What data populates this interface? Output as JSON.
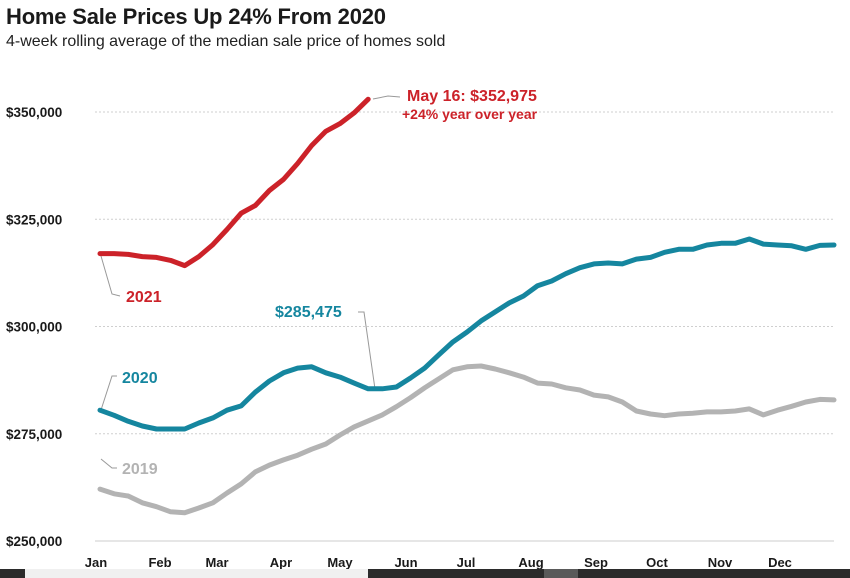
{
  "title": "Home Sale Prices Up 24% From 2020",
  "subtitle": "4-week rolling average of the median sale price of homes sold",
  "chart_data": {
    "type": "line",
    "title": "Home Sale Prices Up 24% From 2020",
    "subtitle": "4-week rolling average of the median sale price of homes sold",
    "xlabel": "",
    "ylabel": "",
    "x_tick_labels": [
      "Jan",
      "Feb",
      "Mar",
      "Apr",
      "May",
      "Jun",
      "Jul",
      "Aug",
      "Sep",
      "Oct",
      "Nov",
      "Dec"
    ],
    "y_tick_labels": [
      "$250,000",
      "$275,000",
      "$300,000",
      "$325,000",
      "$350,000"
    ],
    "y_ticks": [
      250000,
      275000,
      300000,
      325000,
      350000
    ],
    "ylim": [
      250000,
      352975
    ],
    "xlim_weeks": [
      0,
      52
    ],
    "grid": "horizontal dotted",
    "legend": "inline labels",
    "series": [
      {
        "name": "2021",
        "color": "#cc2229",
        "weeks": [
          0,
          1,
          2,
          3,
          4,
          5,
          6,
          7,
          8,
          9,
          10,
          11,
          12,
          13,
          14,
          15,
          16,
          17,
          18,
          19
        ],
        "values": [
          317000,
          317000,
          316800,
          316300,
          316100,
          315400,
          314200,
          316300,
          319100,
          322600,
          326400,
          328200,
          331700,
          334300,
          338000,
          342200,
          345500,
          347300,
          349800,
          352975
        ]
      },
      {
        "name": "2020",
        "color": "#15869f",
        "weeks": [
          0,
          1,
          2,
          3,
          4,
          5,
          6,
          7,
          8,
          9,
          10,
          11,
          12,
          13,
          14,
          15,
          16,
          17,
          18,
          19,
          20,
          21,
          22,
          23,
          24,
          25,
          26,
          27,
          28,
          29,
          30,
          31,
          32,
          33,
          34,
          35,
          36,
          37,
          38,
          39,
          40,
          41,
          42,
          43,
          44,
          45,
          46,
          47,
          48,
          49,
          50,
          51,
          52
        ],
        "values": [
          280500,
          279300,
          277900,
          276800,
          276100,
          276100,
          276100,
          277500,
          278700,
          280500,
          281500,
          284700,
          287300,
          289200,
          290300,
          290600,
          289200,
          288200,
          286800,
          285475,
          285475,
          285900,
          288000,
          290300,
          293400,
          296400,
          298700,
          301300,
          303400,
          305500,
          307100,
          309500,
          310600,
          312300,
          313700,
          314600,
          314800,
          314600,
          315700,
          316100,
          317300,
          318000,
          318000,
          319000,
          319400,
          319400,
          320400,
          319200,
          319000,
          318800,
          318000,
          318900,
          319000
        ]
      },
      {
        "name": "2019",
        "color": "#b3b3b3",
        "weeks": [
          0,
          1,
          2,
          3,
          4,
          5,
          6,
          7,
          8,
          9,
          10,
          11,
          12,
          13,
          14,
          15,
          16,
          17,
          18,
          19,
          20,
          21,
          22,
          23,
          24,
          25,
          26,
          27,
          28,
          29,
          30,
          31,
          32,
          33,
          34,
          35,
          36,
          37,
          38,
          39,
          40,
          41,
          42,
          43,
          44,
          45,
          46,
          47,
          48,
          49,
          50,
          51,
          52
        ],
        "values": [
          262100,
          261000,
          260500,
          258900,
          258000,
          256800,
          256600,
          257700,
          258900,
          261200,
          263300,
          266100,
          267700,
          268900,
          270000,
          271400,
          272600,
          274700,
          276600,
          278000,
          279400,
          281300,
          283400,
          285700,
          287800,
          289900,
          290600,
          290800,
          290100,
          289200,
          288200,
          286800,
          286600,
          285700,
          285200,
          284000,
          283600,
          282400,
          280300,
          279600,
          279200,
          279600,
          279800,
          280100,
          280100,
          280300,
          280800,
          279400,
          280500,
          281400,
          282400,
          283000,
          282900
        ]
      }
    ],
    "annotations": [
      {
        "text": "May 16: $352,975",
        "series": "2021",
        "color": "#cc2229"
      },
      {
        "text": "+24% year over year",
        "series": "2021",
        "color": "#cc2229"
      },
      {
        "text": "$285,475",
        "series": "2020",
        "color": "#15869f"
      },
      {
        "text": "2021",
        "series": "2021",
        "color": "#cc2229"
      },
      {
        "text": "2020",
        "series": "2020",
        "color": "#15869f"
      },
      {
        "text": "2019",
        "series": "2019",
        "color": "#b3b3b3"
      }
    ]
  }
}
